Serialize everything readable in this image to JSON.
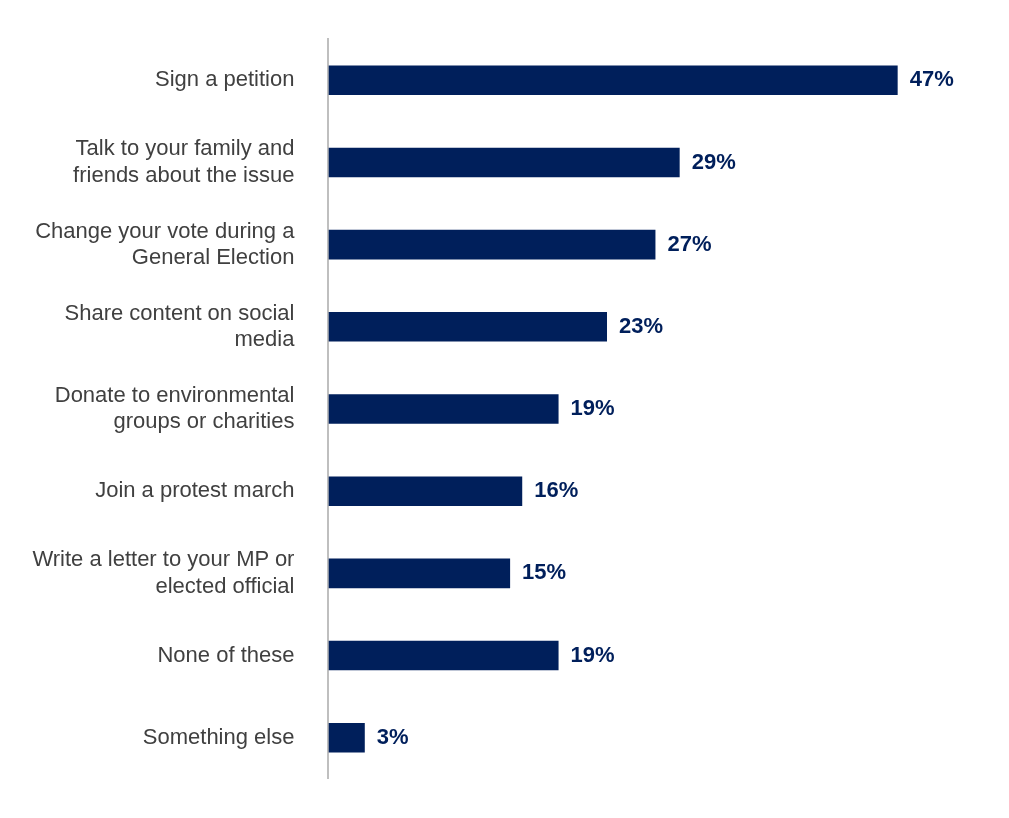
{
  "chart_data": {
    "type": "bar",
    "orientation": "horizontal",
    "categories": [
      "Sign a petition",
      "Talk to your family and friends about the issue",
      "Change your vote during a General Election",
      "Share content on social media",
      "Donate to environmental groups or charities",
      "Join a protest march",
      "Write a letter to your MP or elected official",
      "None of these",
      "Something else"
    ],
    "values": [
      47,
      29,
      27,
      23,
      19,
      16,
      15,
      19,
      3
    ],
    "value_labels": [
      "47%",
      "29%",
      "27%",
      "23%",
      "19%",
      "16%",
      "15%",
      "19%",
      "3%"
    ],
    "color": "#001f5b",
    "legend": false
  }
}
